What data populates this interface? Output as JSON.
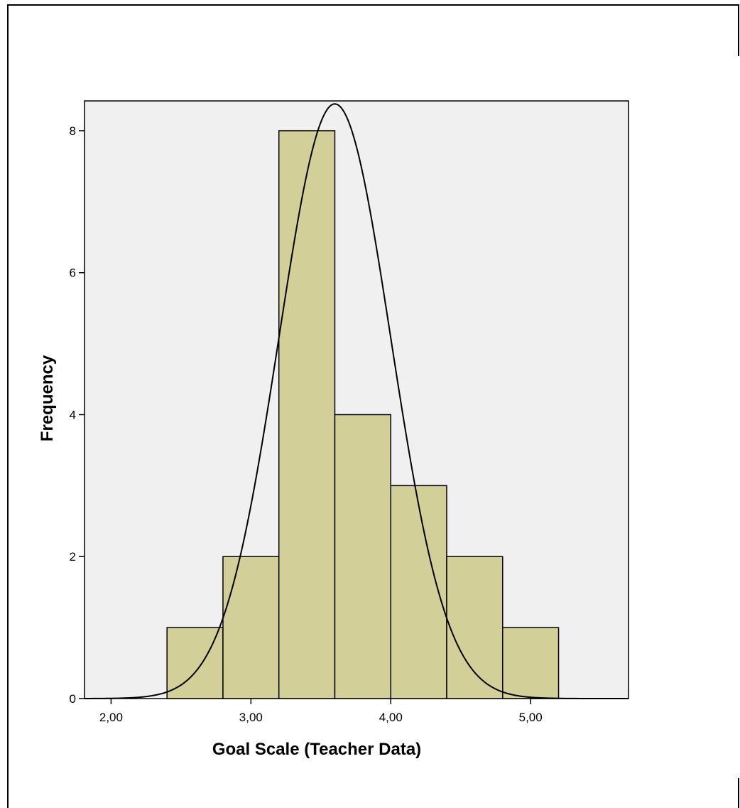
{
  "chart_data": {
    "type": "bar",
    "subtype": "histogram",
    "title": "",
    "xlabel": "Goal Scale (Teacher Data)",
    "ylabel": "Frequency",
    "bins": [
      {
        "start": 2.4,
        "end": 2.8,
        "count": 1
      },
      {
        "start": 2.8,
        "end": 3.2,
        "count": 2
      },
      {
        "start": 3.2,
        "end": 3.6,
        "count": 8
      },
      {
        "start": 3.6,
        "end": 4.0,
        "count": 4
      },
      {
        "start": 4.0,
        "end": 4.4,
        "count": 3
      },
      {
        "start": 4.4,
        "end": 4.8,
        "count": 2
      },
      {
        "start": 4.8,
        "end": 5.2,
        "count": 1
      }
    ],
    "normal_curve": {
      "mean": 3.6,
      "std_dev": 0.4,
      "n": 21,
      "bin_width": 0.4
    },
    "xlim": [
      1.81,
      5.7
    ],
    "ylim": [
      0,
      8.42
    ],
    "x_ticks": [
      2,
      3,
      4,
      5
    ],
    "x_tick_labels": [
      "2,00",
      "3,00",
      "4,00",
      "5,00"
    ],
    "y_ticks": [
      0,
      2,
      4,
      6,
      8
    ],
    "y_tick_labels": [
      "0",
      "2",
      "4",
      "6",
      "8"
    ],
    "grid": false,
    "colors": {
      "bar_fill": "#d3cf99",
      "bar_stroke": "#000000",
      "plot_background": "#f0f0f0",
      "curve": "#000000"
    }
  }
}
